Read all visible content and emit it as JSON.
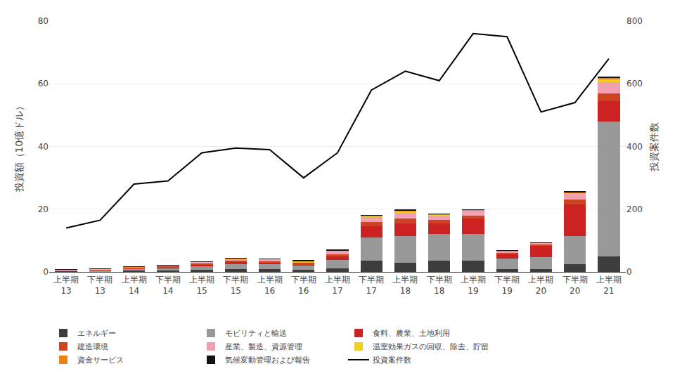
{
  "chart_data": {
    "type": "bar",
    "stacked": true,
    "categories": [
      "上半期\n13",
      "下半期\n13",
      "上半期\n14",
      "下半期\n14",
      "上半期\n15",
      "下半期\n15",
      "上半期\n16",
      "下半期\n16",
      "上半期\n17",
      "下半期\n17",
      "上半期\n18",
      "下半期\n18",
      "上半期\n19",
      "下半期\n19",
      "上半期\n20",
      "下半期\n20",
      "上半期\n21"
    ],
    "series": [
      {
        "name": "エネルギー",
        "color": "#3d3d3d",
        "values": [
          0.3,
          0.2,
          0.45,
          0.5,
          0.7,
          0.9,
          0.8,
          0.6,
          1.2,
          3.5,
          3.0,
          3.5,
          3.5,
          0.8,
          0.8,
          2.5,
          5.0
        ]
      },
      {
        "name": "モビリティと輸送",
        "color": "#999999",
        "values": [
          0.2,
          0.3,
          0.55,
          0.8,
          1.3,
          1.6,
          1.6,
          1.4,
          2.6,
          7.5,
          8.5,
          8.5,
          8.5,
          3.5,
          4.0,
          9.0,
          43.0
        ]
      },
      {
        "name": "食料、農業、土地利用",
        "color": "#cc2222",
        "values": [
          0.05,
          0.12,
          0.15,
          0.25,
          0.35,
          0.55,
          0.55,
          0.45,
          1.1,
          3.5,
          4.0,
          3.5,
          5.0,
          1.5,
          3.5,
          10.0,
          6.5
        ]
      },
      {
        "name": "建造環境",
        "color": "#cc4422",
        "values": [
          0.05,
          0.1,
          0.15,
          0.25,
          0.3,
          0.5,
          0.5,
          0.4,
          0.8,
          1.5,
          1.5,
          1.0,
          1.0,
          0.3,
          0.4,
          1.5,
          2.5
        ]
      },
      {
        "name": "産業、製造、資源管理",
        "color": "#f0a0b0",
        "values": [
          0.08,
          0.15,
          0.18,
          0.28,
          0.45,
          0.55,
          0.55,
          0.5,
          0.85,
          1.5,
          2.0,
          1.5,
          1.5,
          0.5,
          0.5,
          2.0,
          3.5
        ]
      },
      {
        "name": "温室効果ガスの回収、除去、貯留",
        "color": "#f0d020",
        "values": [
          0.02,
          0.05,
          0.05,
          0.05,
          0.08,
          0.1,
          0.1,
          0.1,
          0.2,
          0.3,
          0.3,
          0.2,
          0.2,
          0.1,
          0.1,
          0.3,
          1.0
        ]
      },
      {
        "name": "資金サービス",
        "color": "#e8841a",
        "values": [
          0.02,
          0.04,
          0.04,
          0.05,
          0.05,
          0.1,
          0.1,
          0.1,
          0.15,
          0.2,
          0.3,
          0.2,
          0.1,
          0.05,
          0.05,
          0.2,
          0.5
        ]
      },
      {
        "name": "気候変動管理および報告",
        "color": "#111111",
        "values": [
          0.01,
          0.02,
          0.02,
          0.02,
          0.03,
          0.05,
          0.05,
          0.05,
          0.1,
          0.15,
          0.15,
          0.1,
          0.1,
          0.05,
          0.05,
          0.1,
          0.3
        ]
      },
      {
        "name": "投資案件数",
        "type": "line",
        "axis": "y2",
        "color": "#000000",
        "values": [
          140,
          165,
          280,
          290,
          380,
          395,
          390,
          300,
          380,
          580,
          640,
          610,
          760,
          750,
          510,
          540,
          680
        ]
      }
    ],
    "ylabel": "投資額（10億ドル）",
    "y2label": "投資案件数",
    "ylim": [
      0,
      80
    ],
    "yticks": [
      0,
      20,
      40,
      60,
      80
    ],
    "y2lim": [
      0,
      800
    ],
    "y2ticks": [
      0,
      200,
      400,
      600,
      800
    ],
    "grid": true,
    "legend": "bottom"
  }
}
